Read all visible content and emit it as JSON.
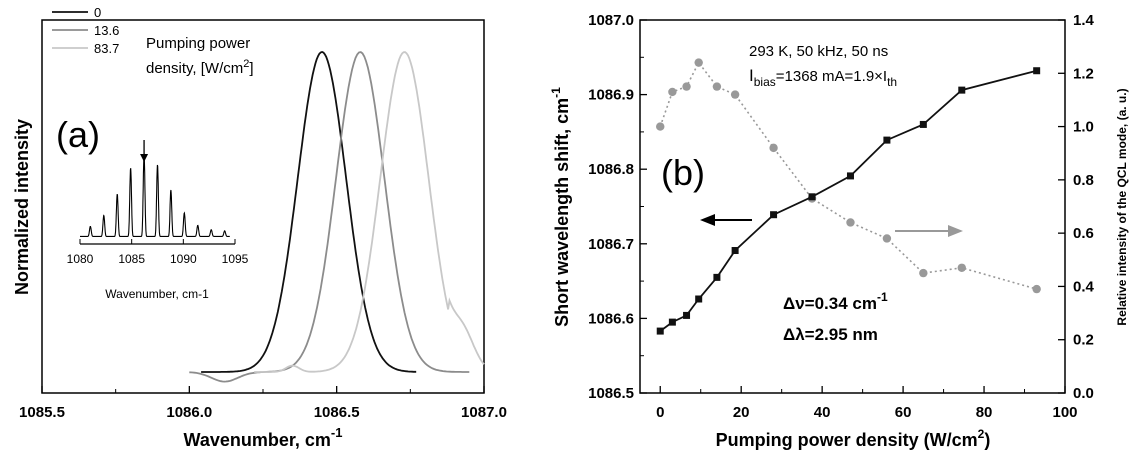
{
  "chart_data": [
    {
      "panel": "(a)",
      "type": "line",
      "xlabel": "Wavenumber, cm",
      "xlabel_sup": "-1",
      "ylabel": "Normalized intensity",
      "xlim": [
        1085.5,
        1087.0
      ],
      "x_ticks": [
        "1085.5",
        "1086.0",
        "1086.5",
        "1087.0"
      ],
      "legend_title_lines": [
        "Pumping power",
        "density, [W/cm",
        "2",
        "]"
      ],
      "series": [
        {
          "name": "0",
          "color": "#111111",
          "center": 1086.45,
          "sigma": 0.082
        },
        {
          "name": "13.6",
          "color": "#8c8c8c",
          "center": 1086.58,
          "sigma": 0.082
        },
        {
          "name": "83.7",
          "color": "#c8c8c8",
          "center": 1086.73,
          "sigma": 0.082
        }
      ],
      "inset": {
        "xlabel": "Wavenumber, cm-1",
        "x_ticks": [
          "1080",
          "1085",
          "1090",
          "1095"
        ],
        "xlim": [
          1080,
          1095
        ],
        "arrow_at": 1086.2
      }
    },
    {
      "panel": "(b)",
      "type": "line",
      "xlabel": "Pumping power density (W/cm",
      "xlabel_sup": "2",
      "xlabel_end": ")",
      "ylabel": "Short wavelength shift, cm",
      "ylabel_sup": "-1",
      "y2label": "Relative intensity of the QCL mode, (a. u.)",
      "xlim": [
        -5,
        100
      ],
      "ylim": [
        1086.5,
        1087.0
      ],
      "y2lim": [
        0.0,
        1.4
      ],
      "x_ticks": [
        "0",
        "20",
        "40",
        "60",
        "80",
        "100"
      ],
      "y_ticks": [
        "1086.5",
        "1086.6",
        "1086.7",
        "1086.8",
        "1086.9",
        "1087.0"
      ],
      "y2_ticks": [
        "0.0",
        "0.2",
        "0.4",
        "0.6",
        "0.8",
        "1.0",
        "1.2",
        "1.4"
      ],
      "annotation_lines": [
        "293 K, 50 kHz, 50 ns"
      ],
      "annotation_bias": {
        "prefix": "I",
        "sub1": "bias",
        "mid": "=1368 mA=1.9×I",
        "sub2": "th"
      },
      "delta_nu": {
        "text": "Δν=0.34 cm",
        "sup": "-1"
      },
      "delta_lambda": "Δλ=2.95 nm",
      "series": [
        {
          "axis": "left",
          "marker": "square",
          "color": "#111111",
          "x": [
            0,
            3,
            6.5,
            9.5,
            14,
            18.5,
            28,
            37.5,
            47,
            56,
            65,
            74.5,
            93
          ],
          "y": [
            1086.583,
            1086.595,
            1086.604,
            1086.626,
            1086.655,
            1086.691,
            1086.739,
            1086.763,
            1086.791,
            1086.839,
            1086.86,
            1086.906,
            1086.932
          ]
        },
        {
          "axis": "right",
          "marker": "circle",
          "color": "#999999",
          "x": [
            0,
            3,
            6.5,
            9.5,
            14,
            18.5,
            28,
            37.5,
            47,
            56,
            65,
            74.5,
            93
          ],
          "y": [
            1.0,
            1.13,
            1.15,
            1.24,
            1.15,
            1.12,
            0.92,
            0.73,
            0.64,
            0.58,
            0.45,
            0.47,
            0.39
          ]
        }
      ]
    }
  ]
}
